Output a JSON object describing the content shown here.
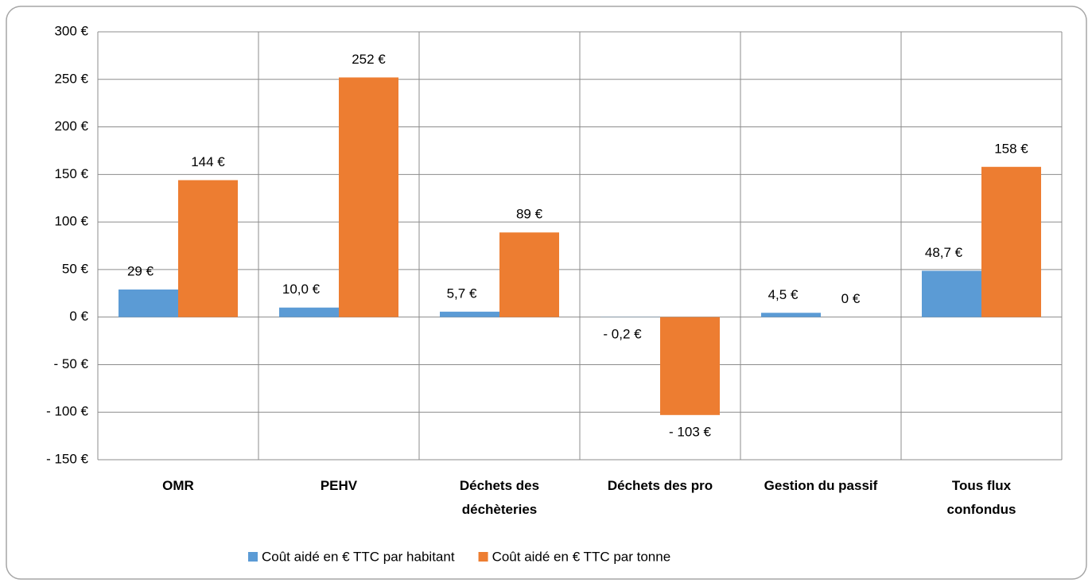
{
  "chart_data": {
    "type": "bar",
    "categories": [
      "OMR",
      "PEHV",
      "Déchets des\ndéchèteries",
      "Déchets des pro",
      "Gestion du passif",
      "Tous flux\nconfondus"
    ],
    "series": [
      {
        "name": "Coût aidé en € TTC par habitant",
        "color": "#5b9bd5",
        "values": [
          29,
          10.0,
          5.7,
          -0.2,
          4.5,
          48.7
        ],
        "value_labels": [
          "29 €",
          "10,0 €",
          "5,7 €",
          "- 0,2 €",
          "4,5 €",
          "48,7 €"
        ]
      },
      {
        "name": "Coût aidé en € TTC par tonne",
        "color": "#ed7d31",
        "values": [
          144,
          252,
          89,
          -103,
          0,
          158
        ],
        "value_labels": [
          "144 €",
          "252 €",
          "89 €",
          "- 103 €",
          "0 €",
          "158 €"
        ]
      }
    ],
    "ylim": [
      -150,
      300
    ],
    "yticks": [
      {
        "value": -150,
        "label": "- 150 €"
      },
      {
        "value": -100,
        "label": "- 100 €"
      },
      {
        "value": -50,
        "label": "- 50 €"
      },
      {
        "value": 0,
        "label": "0 €"
      },
      {
        "value": 50,
        "label": "50 €"
      },
      {
        "value": 100,
        "label": "100 €"
      },
      {
        "value": 150,
        "label": "150 €"
      },
      {
        "value": 200,
        "label": "200 €"
      },
      {
        "value": 250,
        "label": "250 €"
      },
      {
        "value": 300,
        "label": "300 €"
      }
    ],
    "grid": true,
    "legend": "bottom"
  }
}
